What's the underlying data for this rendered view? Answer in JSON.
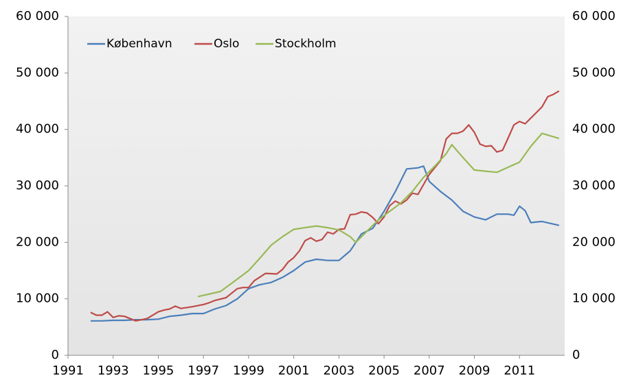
{
  "chart_data": {
    "type": "line",
    "xlim": [
      1991,
      2013
    ],
    "xticks": [
      1991,
      1993,
      1995,
      1997,
      1999,
      2001,
      2003,
      2005,
      2007,
      2009,
      2011
    ],
    "ylim": [
      0,
      60000
    ],
    "yticks": [
      {
        "value": 0,
        "label": "0"
      },
      {
        "value": 10000,
        "label": "10 000"
      },
      {
        "value": 20000,
        "label": "20 000"
      },
      {
        "value": 30000,
        "label": "30 000"
      },
      {
        "value": 40000,
        "label": "40 000"
      },
      {
        "value": 50000,
        "label": "50 000"
      },
      {
        "value": 60000,
        "label": "60 000"
      }
    ],
    "y2lim": [
      0,
      60000
    ],
    "y2ticks": [
      {
        "value": 0,
        "label": "0"
      },
      {
        "value": 10000,
        "label": "10 000"
      },
      {
        "value": 20000,
        "label": "20 000"
      },
      {
        "value": 30000,
        "label": "30 000"
      },
      {
        "value": 40000,
        "label": "40 000"
      },
      {
        "value": 50000,
        "label": "50 000"
      },
      {
        "value": 60000,
        "label": "60 000"
      }
    ],
    "legend": "upper left",
    "series": [
      {
        "name": "København",
        "color": "#4a7ebb",
        "x": [
          1992.0,
          1992.5,
          1993.0,
          1993.5,
          1994.0,
          1994.5,
          1995.0,
          1995.5,
          1996.0,
          1996.5,
          1997.0,
          1997.5,
          1998.0,
          1998.5,
          1999.0,
          1999.5,
          2000.0,
          2000.5,
          2001.0,
          2001.5,
          2002.0,
          2002.5,
          2003.0,
          2003.5,
          2004.0,
          2004.5,
          2005.0,
          2005.5,
          2006.0,
          2006.5,
          2006.75,
          2007.0,
          2007.5,
          2008.0,
          2008.5,
          2009.0,
          2009.5,
          2010.0,
          2010.5,
          2010.75,
          2011.0,
          2011.25,
          2011.5,
          2012.0,
          2012.75
        ],
        "values": [
          6100,
          6100,
          6200,
          6200,
          6300,
          6300,
          6400,
          6900,
          7100,
          7400,
          7400,
          8200,
          8800,
          10000,
          11800,
          12500,
          12900,
          13800,
          15000,
          16500,
          17000,
          16800,
          16800,
          18500,
          21500,
          22500,
          25500,
          29000,
          33000,
          33200,
          33500,
          30800,
          29000,
          27500,
          25500,
          24500,
          24000,
          25000,
          25000,
          24800,
          26400,
          25600,
          23500,
          23700,
          23000
        ]
      },
      {
        "name": "Oslo",
        "color": "#be4b48",
        "x": [
          1992.0,
          1992.25,
          1992.5,
          1992.75,
          1993.0,
          1993.25,
          1993.5,
          1994.0,
          1994.5,
          1995.0,
          1995.25,
          1995.5,
          1995.75,
          1996.0,
          1996.5,
          1997.0,
          1997.25,
          1997.5,
          1998.0,
          1998.5,
          1998.75,
          1999.0,
          1999.25,
          1999.75,
          2000.25,
          2000.5,
          2000.75,
          2001.0,
          2001.25,
          2001.5,
          2001.75,
          2002.0,
          2002.25,
          2002.5,
          2002.75,
          2003.0,
          2003.25,
          2003.5,
          2003.75,
          2004.0,
          2004.25,
          2004.5,
          2004.75,
          2005.0,
          2005.25,
          2005.5,
          2005.75,
          2006.0,
          2006.25,
          2006.5,
          2007.0,
          2007.5,
          2007.75,
          2008.0,
          2008.25,
          2008.5,
          2008.75,
          2009.0,
          2009.25,
          2009.5,
          2009.75,
          2010.0,
          2010.25,
          2010.5,
          2010.75,
          2011.0,
          2011.25,
          2011.5,
          2011.75,
          2012.0,
          2012.25,
          2012.5,
          2012.75
        ],
        "values": [
          7600,
          7100,
          7100,
          7700,
          6700,
          7000,
          6900,
          6100,
          6500,
          7700,
          8000,
          8200,
          8700,
          8300,
          8600,
          9000,
          9300,
          9700,
          10200,
          11800,
          12000,
          12000,
          13200,
          14500,
          14400,
          15200,
          16500,
          17300,
          18500,
          20300,
          20800,
          20200,
          20500,
          21800,
          21500,
          22300,
          22400,
          24900,
          25000,
          25400,
          25200,
          24400,
          23300,
          24500,
          26500,
          27300,
          26800,
          27500,
          28700,
          28500,
          32000,
          34500,
          38300,
          39300,
          39300,
          39700,
          40800,
          39500,
          37400,
          37000,
          37100,
          36000,
          36300,
          38500,
          40800,
          41400,
          41000,
          42000,
          43000,
          44000,
          45800,
          46200,
          46800
        ]
      },
      {
        "name": "Stockholm",
        "color": "#98b954",
        "x": [
          1996.75,
          1997.75,
          1998.5,
          1999.0,
          1999.5,
          2000.0,
          2000.5,
          2001.0,
          2001.5,
          2002.0,
          2002.5,
          2003.0,
          2003.5,
          2003.75,
          2004.25,
          2004.75,
          2005.25,
          2005.75,
          2006.25,
          2006.75,
          2007.25,
          2007.75,
          2008.0,
          2008.5,
          2009.0,
          2009.5,
          2010.0,
          2010.5,
          2011.0,
          2011.5,
          2012.0,
          2012.75
        ],
        "values": [
          10400,
          11300,
          13500,
          15000,
          17200,
          19500,
          21000,
          22300,
          22600,
          22900,
          22600,
          22200,
          21000,
          20000,
          22000,
          24000,
          25500,
          27000,
          29000,
          31500,
          33500,
          35700,
          37300,
          35000,
          32800,
          32600,
          32400,
          33300,
          34200,
          37000,
          39300,
          38400
        ]
      }
    ]
  }
}
